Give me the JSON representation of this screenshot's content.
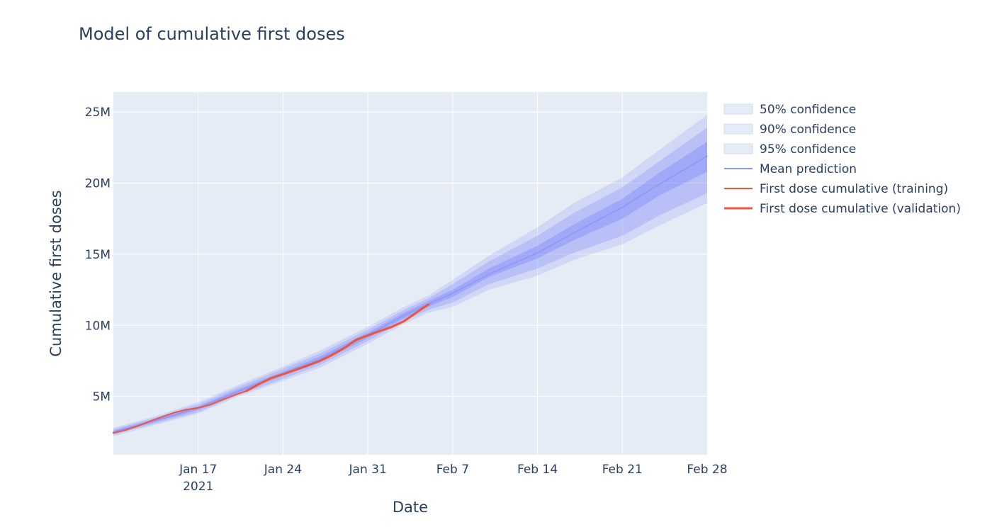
{
  "chart_data": {
    "type": "line",
    "title": "Model of cumulative first doses",
    "xlabel": "Date",
    "ylabel": "Cumulative first doses",
    "x_range": [
      "2021-01-10",
      "2021-02-28"
    ],
    "ylim": [
      900000,
      26400000
    ],
    "x_ticks": [
      {
        "date": "2021-01-17",
        "label": "Jan 17",
        "sublabel": "2021"
      },
      {
        "date": "2021-01-24",
        "label": "Jan 24",
        "sublabel": ""
      },
      {
        "date": "2021-01-31",
        "label": "Jan 31",
        "sublabel": ""
      },
      {
        "date": "2021-02-07",
        "label": "Feb 7",
        "sublabel": ""
      },
      {
        "date": "2021-02-14",
        "label": "Feb 14",
        "sublabel": ""
      },
      {
        "date": "2021-02-21",
        "label": "Feb 21",
        "sublabel": ""
      },
      {
        "date": "2021-02-28",
        "label": "Feb 28",
        "sublabel": ""
      }
    ],
    "y_ticks": [
      {
        "value": 5000000,
        "label": "5M"
      },
      {
        "value": 10000000,
        "label": "10M"
      },
      {
        "value": 15000000,
        "label": "15M"
      },
      {
        "value": 20000000,
        "label": "20M"
      },
      {
        "value": 25000000,
        "label": "25M"
      }
    ],
    "grid": true,
    "legend_position": "right",
    "colors": {
      "plot_bg": "#e5ecf6",
      "grid": "#ffffff",
      "band_50": "rgba(99,110,250,0.28)",
      "band_90": "rgba(99,110,250,0.22)",
      "band_95": "rgba(99,110,250,0.16)",
      "mean": "#8f95f5",
      "actual": "#ef553b"
    },
    "series": [
      {
        "name": "95% confidence",
        "kind": "band",
        "x": [
          "2021-01-10",
          "2021-01-13",
          "2021-01-17",
          "2021-01-20",
          "2021-01-24",
          "2021-01-27",
          "2021-01-31",
          "2021-02-03",
          "2021-02-05",
          "2021-02-07",
          "2021-02-10",
          "2021-02-14",
          "2021-02-17",
          "2021-02-21",
          "2021-02-24",
          "2021-02-28"
        ],
        "lower": [
          2200000,
          2900000,
          3800000,
          4900000,
          6100000,
          7000000,
          8700000,
          10100000,
          10900000,
          11300000,
          12500000,
          13500000,
          14600000,
          15700000,
          17000000,
          18600000
        ],
        "upper": [
          2800000,
          3500000,
          4600000,
          5700000,
          7100000,
          8200000,
          9900000,
          11300000,
          12100000,
          13200000,
          14900000,
          16900000,
          18600000,
          20400000,
          22300000,
          24800000
        ]
      },
      {
        "name": "90% confidence",
        "kind": "band",
        "x": [
          "2021-01-10",
          "2021-01-13",
          "2021-01-17",
          "2021-01-20",
          "2021-01-24",
          "2021-01-27",
          "2021-01-31",
          "2021-02-03",
          "2021-02-05",
          "2021-02-07",
          "2021-02-10",
          "2021-02-14",
          "2021-02-17",
          "2021-02-21",
          "2021-02-24",
          "2021-02-28"
        ],
        "lower": [
          2300000,
          3000000,
          3900000,
          5000000,
          6250000,
          7200000,
          8900000,
          10300000,
          11100000,
          11600000,
          12900000,
          14000000,
          15100000,
          16300000,
          17700000,
          19300000
        ],
        "upper": [
          2700000,
          3400000,
          4450000,
          5550000,
          6950000,
          8000000,
          9700000,
          11100000,
          11900000,
          12900000,
          14500000,
          16300000,
          17900000,
          19700000,
          21500000,
          23900000
        ]
      },
      {
        "name": "50% confidence",
        "kind": "band",
        "x": [
          "2021-01-10",
          "2021-01-13",
          "2021-01-17",
          "2021-01-20",
          "2021-01-24",
          "2021-01-27",
          "2021-01-31",
          "2021-02-03",
          "2021-02-05",
          "2021-02-07",
          "2021-02-10",
          "2021-02-14",
          "2021-02-17",
          "2021-02-21",
          "2021-02-24",
          "2021-02-28"
        ],
        "lower": [
          2400000,
          3100000,
          4050000,
          5150000,
          6450000,
          7400000,
          9100000,
          10500000,
          11300000,
          12000000,
          13400000,
          14700000,
          16000000,
          17500000,
          19100000,
          20800000
        ],
        "upper": [
          2600000,
          3300000,
          4300000,
          5400000,
          6750000,
          7800000,
          9500000,
          10900000,
          11700000,
          12500000,
          14000000,
          15600000,
          17100000,
          18900000,
          20700000,
          22900000
        ]
      },
      {
        "name": "Mean prediction",
        "kind": "line",
        "x": [
          "2021-01-10",
          "2021-01-13",
          "2021-01-17",
          "2021-01-20",
          "2021-01-24",
          "2021-01-27",
          "2021-01-31",
          "2021-02-03",
          "2021-02-05",
          "2021-02-07",
          "2021-02-10",
          "2021-02-14",
          "2021-02-17",
          "2021-02-21",
          "2021-02-24",
          "2021-02-28"
        ],
        "values": [
          2500000,
          3200000,
          4200000,
          5250000,
          6600000,
          7600000,
          9300000,
          10700000,
          11500000,
          12250000,
          13600000,
          15100000,
          16500000,
          18300000,
          19900000,
          21900000
        ]
      },
      {
        "name": "First dose cumulative (training)",
        "kind": "line",
        "x": [
          "2021-01-10",
          "2021-01-11",
          "2021-01-12",
          "2021-01-13",
          "2021-01-14",
          "2021-01-15",
          "2021-01-16",
          "2021-01-17",
          "2021-01-18",
          "2021-01-19",
          "2021-01-20",
          "2021-01-21",
          "2021-01-22",
          "2021-01-23",
          "2021-01-24",
          "2021-01-25",
          "2021-01-26",
          "2021-01-27",
          "2021-01-28",
          "2021-01-29",
          "2021-01-30",
          "2021-01-31",
          "2021-02-01",
          "2021-02-02",
          "2021-02-03",
          "2021-02-04",
          "2021-02-05"
        ],
        "values": [
          2430000,
          2640000,
          2920000,
          3250000,
          3560000,
          3860000,
          4070000,
          4200000,
          4420000,
          4770000,
          5100000,
          5400000,
          5860000,
          6290000,
          6570000,
          6860000,
          7160000,
          7480000,
          7890000,
          8380000,
          8970000,
          9300000,
          9600000,
          9900000,
          10300000,
          10900000,
          11470000
        ]
      },
      {
        "name": "First dose cumulative (validation)",
        "kind": "line",
        "x": [
          "2021-01-21",
          "2021-01-22",
          "2021-01-23",
          "2021-01-24",
          "2021-01-25",
          "2021-01-26",
          "2021-01-27",
          "2021-01-28",
          "2021-01-29",
          "2021-01-30",
          "2021-01-31",
          "2021-02-01",
          "2021-02-02",
          "2021-02-03",
          "2021-02-04",
          "2021-02-05"
        ],
        "values": [
          5400000,
          5860000,
          6290000,
          6570000,
          6860000,
          7160000,
          7480000,
          7890000,
          8380000,
          8970000,
          9300000,
          9600000,
          9900000,
          10300000,
          10900000,
          11470000
        ]
      }
    ]
  }
}
